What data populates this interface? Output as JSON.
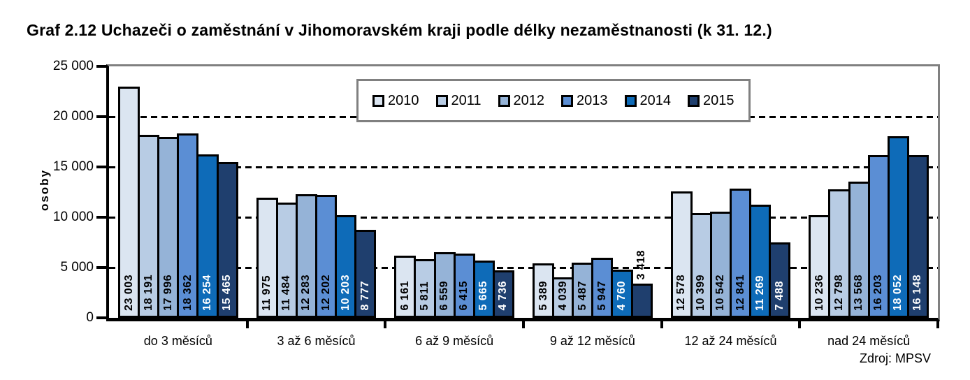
{
  "title": "Graf 2.12 Uchazeči o zaměstnání v Jihomoravském kraji podle délky nezaměstnanosti (k 31. 12.)",
  "source": "Zdroj: MPSV",
  "chart_data": {
    "type": "bar",
    "title": "Graf 2.12 Uchazeči o zaměstnání v Jihomoravském kraji podle délky nezaměstnanosti (k 31. 12.)",
    "xlabel": "",
    "ylabel": "osoby",
    "ylim": [
      0,
      25000
    ],
    "ytick_interval": 5000,
    "ytick_labels": [
      "0",
      "5 000",
      "10 000",
      "15 000",
      "20 000",
      "25 000"
    ],
    "grid": "horizontal-dashed",
    "legend_position": "top-center",
    "categories": [
      "do 3 měsíců",
      "3 až 6 měsíců",
      "6 až 9 měsíců",
      "9 až 12 měsíců",
      "12 až 24 měsíců",
      "nad 24 měsíců"
    ],
    "series": [
      {
        "name": "2010",
        "color": "#dbe5f1",
        "label_color": "#000000",
        "values": [
          23003,
          11975,
          6161,
          5389,
          12578,
          10236
        ]
      },
      {
        "name": "2011",
        "color": "#b8cce4",
        "label_color": "#000000",
        "values": [
          18191,
          11484,
          5811,
          4039,
          10399,
          12798
        ]
      },
      {
        "name": "2012",
        "color": "#95b3d7",
        "label_color": "#000000",
        "values": [
          17996,
          12283,
          6559,
          5487,
          10542,
          13568
        ]
      },
      {
        "name": "2013",
        "color": "#5b8ed4",
        "label_color": "#000000",
        "values": [
          18362,
          12202,
          6415,
          5947,
          12841,
          16203
        ]
      },
      {
        "name": "2014",
        "color": "#0e6bb8",
        "label_color": "#ffffff",
        "values": [
          16254,
          10203,
          5665,
          4760,
          11269,
          18052
        ]
      },
      {
        "name": "2015",
        "color": "#1f3f6e",
        "label_color": "#ffffff",
        "values": [
          15465,
          8777,
          4736,
          3418,
          7488,
          16148
        ]
      }
    ],
    "bar_value_labels": "rotated-90-inside-bottom",
    "outside_label_threshold": 4000,
    "source": "Zdroj: MPSV"
  },
  "colors": {
    "axis": "#000000",
    "frame": "#808080",
    "gridline": "#000000",
    "background": "#ffffff"
  }
}
